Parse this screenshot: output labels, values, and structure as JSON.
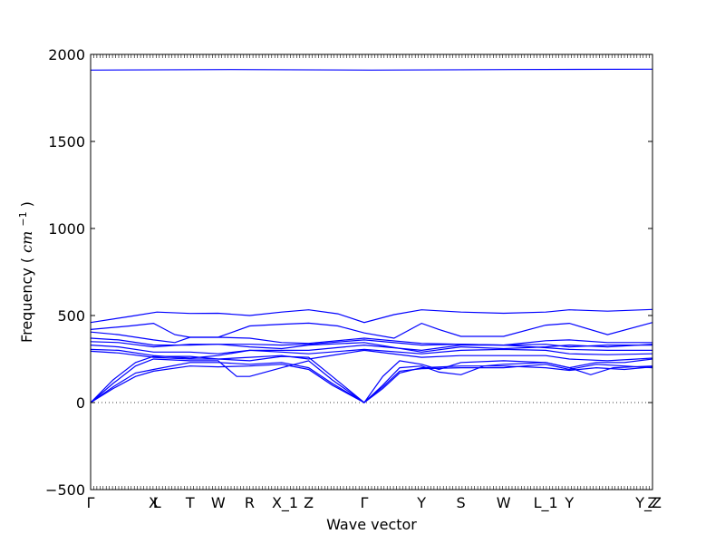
{
  "chart_data": {
    "type": "line",
    "xlabel": "Wave vector",
    "ylabel": {
      "text": "Frequency",
      "unit_base": "cm",
      "unit_exp": "−1"
    },
    "ylim": [
      -500,
      2000
    ],
    "yticks": [
      -500,
      0,
      500,
      1000,
      1500,
      2000
    ],
    "xlim": [
      0,
      1
    ],
    "x_ticks": [
      {
        "label": "Γ",
        "x": 0.0
      },
      {
        "label": "X",
        "x": 0.112
      },
      {
        "label": "L",
        "x": 0.118
      },
      {
        "label": "T",
        "x": 0.177
      },
      {
        "label": "W",
        "x": 0.227
      },
      {
        "label": "R",
        "x": 0.283
      },
      {
        "label": "X_1",
        "x": 0.346
      },
      {
        "label": "Z",
        "x": 0.388
      },
      {
        "label": "Γ",
        "x": 0.487
      },
      {
        "label": "Y",
        "x": 0.589
      },
      {
        "label": "S",
        "x": 0.659
      },
      {
        "label": "W",
        "x": 0.735
      },
      {
        "label": "L_1",
        "x": 0.81
      },
      {
        "label": "Y",
        "x": 0.852
      },
      {
        "label": "Y_Z",
        "x": 0.993
      },
      {
        "label": "Z",
        "x": 1.0
      }
    ],
    "zero_line": true,
    "line_color": "#0000ff",
    "series": [
      {
        "points": [
          [
            0,
            1910
          ],
          [
            0.25,
            1913
          ],
          [
            0.5,
            1910
          ],
          [
            0.75,
            1913
          ],
          [
            1,
            1915
          ]
        ]
      },
      {
        "points": [
          [
            0,
            460
          ],
          [
            0.07,
            495
          ],
          [
            0.118,
            520
          ],
          [
            0.177,
            512
          ],
          [
            0.227,
            513
          ],
          [
            0.283,
            500
          ],
          [
            0.34,
            520
          ],
          [
            0.388,
            533
          ],
          [
            0.44,
            510
          ],
          [
            0.487,
            460
          ],
          [
            0.54,
            505
          ],
          [
            0.589,
            533
          ],
          [
            0.659,
            520
          ],
          [
            0.735,
            513
          ],
          [
            0.81,
            520
          ],
          [
            0.852,
            533
          ],
          [
            0.92,
            525
          ],
          [
            1,
            535
          ]
        ]
      },
      {
        "points": [
          [
            0,
            420
          ],
          [
            0.07,
            440
          ],
          [
            0.112,
            455
          ],
          [
            0.15,
            390
          ],
          [
            0.177,
            375
          ],
          [
            0.227,
            375
          ],
          [
            0.283,
            440
          ],
          [
            0.34,
            450
          ],
          [
            0.388,
            456
          ],
          [
            0.44,
            440
          ],
          [
            0.487,
            400
          ],
          [
            0.54,
            370
          ],
          [
            0.589,
            455
          ],
          [
            0.62,
            420
          ],
          [
            0.659,
            380
          ],
          [
            0.735,
            380
          ],
          [
            0.81,
            445
          ],
          [
            0.852,
            455
          ],
          [
            0.92,
            390
          ],
          [
            1,
            460
          ]
        ]
      },
      {
        "points": [
          [
            0,
            405
          ],
          [
            0.05,
            390
          ],
          [
            0.112,
            360
          ],
          [
            0.15,
            345
          ],
          [
            0.177,
            375
          ],
          [
            0.227,
            375
          ],
          [
            0.283,
            370
          ],
          [
            0.34,
            345
          ],
          [
            0.388,
            340
          ],
          [
            0.487,
            370
          ],
          [
            0.589,
            340
          ],
          [
            0.659,
            335
          ],
          [
            0.735,
            330
          ],
          [
            0.81,
            355
          ],
          [
            0.852,
            360
          ],
          [
            0.92,
            345
          ],
          [
            1,
            345
          ]
        ]
      },
      {
        "points": [
          [
            0,
            370
          ],
          [
            0.05,
            360
          ],
          [
            0.112,
            330
          ],
          [
            0.177,
            330
          ],
          [
            0.227,
            335
          ],
          [
            0.283,
            335
          ],
          [
            0.34,
            330
          ],
          [
            0.388,
            335
          ],
          [
            0.487,
            360
          ],
          [
            0.589,
            330
          ],
          [
            0.659,
            335
          ],
          [
            0.735,
            330
          ],
          [
            0.81,
            335
          ],
          [
            0.852,
            320
          ],
          [
            0.92,
            330
          ],
          [
            1,
            330
          ]
        ]
      },
      {
        "points": [
          [
            0,
            350
          ],
          [
            0.05,
            345
          ],
          [
            0.112,
            320
          ],
          [
            0.177,
            335
          ],
          [
            0.227,
            335
          ],
          [
            0.283,
            320
          ],
          [
            0.34,
            310
          ],
          [
            0.388,
            330
          ],
          [
            0.487,
            345
          ],
          [
            0.589,
            290
          ],
          [
            0.659,
            320
          ],
          [
            0.735,
            310
          ],
          [
            0.81,
            320
          ],
          [
            0.852,
            330
          ],
          [
            0.92,
            320
          ],
          [
            1,
            335
          ]
        ]
      },
      {
        "points": [
          [
            0,
            330
          ],
          [
            0.05,
            320
          ],
          [
            0.112,
            290
          ],
          [
            0.177,
            290
          ],
          [
            0.227,
            280
          ],
          [
            0.283,
            300
          ],
          [
            0.34,
            300
          ],
          [
            0.388,
            300
          ],
          [
            0.487,
            330
          ],
          [
            0.589,
            300
          ],
          [
            0.659,
            330
          ],
          [
            0.735,
            330
          ],
          [
            0.81,
            315
          ],
          [
            0.852,
            305
          ],
          [
            0.92,
            300
          ],
          [
            1,
            300
          ]
        ]
      },
      {
        "points": [
          [
            0,
            305
          ],
          [
            0.05,
            300
          ],
          [
            0.112,
            270
          ],
          [
            0.177,
            255
          ],
          [
            0.227,
            270
          ],
          [
            0.283,
            300
          ],
          [
            0.34,
            290
          ],
          [
            0.388,
            280
          ],
          [
            0.487,
            305
          ],
          [
            0.589,
            280
          ],
          [
            0.659,
            300
          ],
          [
            0.735,
            305
          ],
          [
            0.81,
            300
          ],
          [
            0.852,
            280
          ],
          [
            0.92,
            275
          ],
          [
            1,
            280
          ]
        ]
      },
      {
        "points": [
          [
            0,
            295
          ],
          [
            0.05,
            285
          ],
          [
            0.112,
            260
          ],
          [
            0.177,
            250
          ],
          [
            0.227,
            250
          ],
          [
            0.283,
            260
          ],
          [
            0.34,
            270
          ],
          [
            0.388,
            250
          ],
          [
            0.487,
            300
          ],
          [
            0.589,
            260
          ],
          [
            0.659,
            270
          ],
          [
            0.735,
            270
          ],
          [
            0.81,
            270
          ],
          [
            0.852,
            250
          ],
          [
            0.92,
            240
          ],
          [
            1,
            255
          ]
        ]
      },
      {
        "points": [
          [
            0,
            0
          ],
          [
            0.04,
            130
          ],
          [
            0.08,
            230
          ],
          [
            0.112,
            265
          ],
          [
            0.177,
            265
          ],
          [
            0.227,
            250
          ],
          [
            0.283,
            240
          ],
          [
            0.34,
            265
          ],
          [
            0.388,
            260
          ],
          [
            0.43,
            150
          ],
          [
            0.487,
            0
          ],
          [
            0.52,
            150
          ],
          [
            0.55,
            240
          ],
          [
            0.589,
            220
          ],
          [
            0.62,
            190
          ],
          [
            0.659,
            230
          ],
          [
            0.735,
            240
          ],
          [
            0.81,
            230
          ],
          [
            0.852,
            200
          ],
          [
            0.9,
            230
          ],
          [
            0.95,
            230
          ],
          [
            1,
            250
          ]
        ]
      },
      {
        "points": [
          [
            0,
            0
          ],
          [
            0.04,
            110
          ],
          [
            0.08,
            210
          ],
          [
            0.112,
            250
          ],
          [
            0.177,
            240
          ],
          [
            0.227,
            240
          ],
          [
            0.26,
            150
          ],
          [
            0.283,
            150
          ],
          [
            0.34,
            200
          ],
          [
            0.388,
            240
          ],
          [
            0.43,
            130
          ],
          [
            0.487,
            0
          ],
          [
            0.52,
            100
          ],
          [
            0.55,
            200
          ],
          [
            0.589,
            210
          ],
          [
            0.62,
            175
          ],
          [
            0.659,
            160
          ],
          [
            0.7,
            210
          ],
          [
            0.735,
            220
          ],
          [
            0.81,
            230
          ],
          [
            0.852,
            200
          ],
          [
            0.89,
            160
          ],
          [
            0.93,
            200
          ],
          [
            1,
            210
          ]
        ]
      },
      {
        "points": [
          [
            0,
            0
          ],
          [
            0.04,
            90
          ],
          [
            0.08,
            170
          ],
          [
            0.112,
            190
          ],
          [
            0.177,
            230
          ],
          [
            0.227,
            230
          ],
          [
            0.283,
            220
          ],
          [
            0.34,
            230
          ],
          [
            0.388,
            200
          ],
          [
            0.43,
            110
          ],
          [
            0.487,
            0
          ],
          [
            0.52,
            90
          ],
          [
            0.55,
            180
          ],
          [
            0.589,
            195
          ],
          [
            0.659,
            200
          ],
          [
            0.735,
            200
          ],
          [
            0.81,
            220
          ],
          [
            0.852,
            190
          ],
          [
            0.9,
            220
          ],
          [
            0.95,
            210
          ],
          [
            1,
            200
          ]
        ]
      },
      {
        "points": [
          [
            0,
            0
          ],
          [
            0.04,
            80
          ],
          [
            0.08,
            150
          ],
          [
            0.112,
            180
          ],
          [
            0.177,
            210
          ],
          [
            0.227,
            205
          ],
          [
            0.283,
            210
          ],
          [
            0.34,
            220
          ],
          [
            0.388,
            190
          ],
          [
            0.43,
            100
          ],
          [
            0.487,
            0
          ],
          [
            0.52,
            80
          ],
          [
            0.55,
            170
          ],
          [
            0.589,
            200
          ],
          [
            0.659,
            210
          ],
          [
            0.735,
            210
          ],
          [
            0.81,
            200
          ],
          [
            0.852,
            185
          ],
          [
            0.9,
            200
          ],
          [
            0.95,
            190
          ],
          [
            1,
            205
          ]
        ]
      }
    ]
  }
}
